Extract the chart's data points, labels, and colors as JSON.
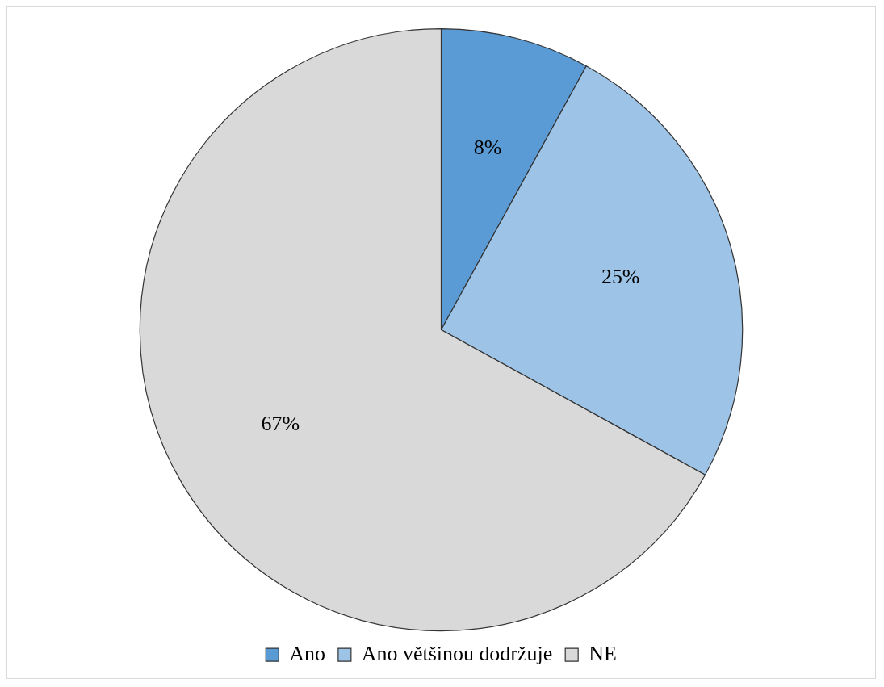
{
  "chart_data": {
    "type": "pie",
    "categories": [
      "Ano",
      "Ano většinou dodržuje",
      "NE"
    ],
    "values": [
      8,
      25,
      67
    ],
    "colors": [
      "#5b9bd5",
      "#9dc3e6",
      "#d9d9d9"
    ],
    "value_labels": [
      "8%",
      "25%",
      "67%"
    ],
    "legend": "bottom"
  }
}
